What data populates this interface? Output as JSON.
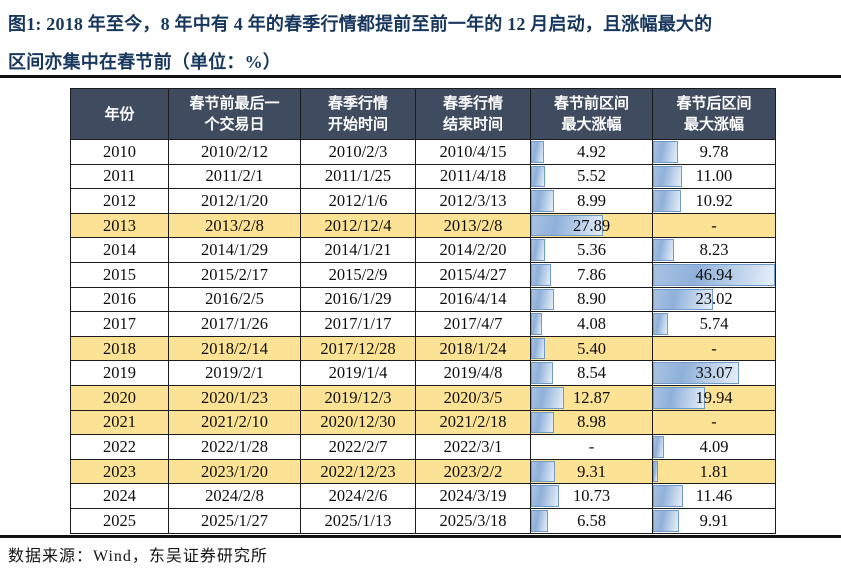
{
  "title": {
    "lines": [
      "图1:  2018 年至今，8 年中有 4 年的春季行情都提前至前一年的 12 月启动，且涨幅最大的",
      "区间亦集中在春节前（单位：%）"
    ]
  },
  "table": {
    "columns": [
      {
        "label": "年份"
      },
      {
        "label": "春节前最后一\n个交易日"
      },
      {
        "label": "春季行情\n开始时间"
      },
      {
        "label": "春季行情\n结束时间"
      },
      {
        "label": "春节前区间\n最大涨幅"
      },
      {
        "label": "春节后区间\n最大涨幅"
      }
    ],
    "bar_max": 46.94,
    "rows": [
      {
        "year": "2010",
        "pre_festival_last_day": "2010/2/12",
        "rally_start": "2010/2/3",
        "rally_end": "2010/4/15",
        "pre_festival_max_gain": "4.92",
        "post_festival_max_gain": "9.78",
        "highlight": false
      },
      {
        "year": "2011",
        "pre_festival_last_day": "2011/2/1",
        "rally_start": "2011/1/25",
        "rally_end": "2011/4/18",
        "pre_festival_max_gain": "5.52",
        "post_festival_max_gain": "11.00",
        "highlight": false
      },
      {
        "year": "2012",
        "pre_festival_last_day": "2012/1/20",
        "rally_start": "2012/1/6",
        "rally_end": "2012/3/13",
        "pre_festival_max_gain": "8.99",
        "post_festival_max_gain": "10.92",
        "highlight": false
      },
      {
        "year": "2013",
        "pre_festival_last_day": "2013/2/8",
        "rally_start": "2012/12/4",
        "rally_end": "2013/2/8",
        "pre_festival_max_gain": "27.89",
        "post_festival_max_gain": "-",
        "highlight": true
      },
      {
        "year": "2014",
        "pre_festival_last_day": "2014/1/29",
        "rally_start": "2014/1/21",
        "rally_end": "2014/2/20",
        "pre_festival_max_gain": "5.36",
        "post_festival_max_gain": "8.23",
        "highlight": false
      },
      {
        "year": "2015",
        "pre_festival_last_day": "2015/2/17",
        "rally_start": "2015/2/9",
        "rally_end": "2015/4/27",
        "pre_festival_max_gain": "7.86",
        "post_festival_max_gain": "46.94",
        "highlight": false
      },
      {
        "year": "2016",
        "pre_festival_last_day": "2016/2/5",
        "rally_start": "2016/1/29",
        "rally_end": "2016/4/14",
        "pre_festival_max_gain": "8.90",
        "post_festival_max_gain": "23.02",
        "highlight": false
      },
      {
        "year": "2017",
        "pre_festival_last_day": "2017/1/26",
        "rally_start": "2017/1/17",
        "rally_end": "2017/4/7",
        "pre_festival_max_gain": "4.08",
        "post_festival_max_gain": "5.74",
        "highlight": false
      },
      {
        "year": "2018",
        "pre_festival_last_day": "2018/2/14",
        "rally_start": "2017/12/28",
        "rally_end": "2018/1/24",
        "pre_festival_max_gain": "5.40",
        "post_festival_max_gain": "-",
        "highlight": true
      },
      {
        "year": "2019",
        "pre_festival_last_day": "2019/2/1",
        "rally_start": "2019/1/4",
        "rally_end": "2019/4/8",
        "pre_festival_max_gain": "8.54",
        "post_festival_max_gain": "33.07",
        "highlight": false
      },
      {
        "year": "2020",
        "pre_festival_last_day": "2020/1/23",
        "rally_start": "2019/12/3",
        "rally_end": "2020/3/5",
        "pre_festival_max_gain": "12.87",
        "post_festival_max_gain": "19.94",
        "highlight": true
      },
      {
        "year": "2021",
        "pre_festival_last_day": "2021/2/10",
        "rally_start": "2020/12/30",
        "rally_end": "2021/2/18",
        "pre_festival_max_gain": "8.98",
        "post_festival_max_gain": "-",
        "highlight": true
      },
      {
        "year": "2022",
        "pre_festival_last_day": "2022/1/28",
        "rally_start": "2022/2/7",
        "rally_end": "2022/3/1",
        "pre_festival_max_gain": "-",
        "post_festival_max_gain": "4.09",
        "highlight": false
      },
      {
        "year": "2023",
        "pre_festival_last_day": "2023/1/20",
        "rally_start": "2022/12/23",
        "rally_end": "2023/2/2",
        "pre_festival_max_gain": "9.31",
        "post_festival_max_gain": "1.81",
        "highlight": true
      },
      {
        "year": "2024",
        "pre_festival_last_day": "2024/2/8",
        "rally_start": "2024/2/6",
        "rally_end": "2024/3/19",
        "pre_festival_max_gain": "10.73",
        "post_festival_max_gain": "11.46",
        "highlight": false
      },
      {
        "year": "2025",
        "pre_festival_last_day": "2025/1/27",
        "rally_start": "2025/1/13",
        "rally_end": "2025/3/18",
        "pre_festival_max_gain": "6.58",
        "post_festival_max_gain": "9.91",
        "highlight": false
      }
    ]
  },
  "footer": {
    "source": "数据来源：Wind，东吴证券研究所"
  },
  "colors": {
    "title_text": "#17375D",
    "header_bg": "#3F4B5E",
    "header_text": "#FFFFFF",
    "highlight_row": "#FBE294",
    "bar_border": "#6F9AC9",
    "bar_fill": "#8FB0D9",
    "rule": "#111111"
  },
  "chart_data": {
    "type": "table",
    "title": "图1: 2018 年至今，8 年中有 4 年的春季行情都提前至前一年的 12 月启动，且涨幅最大的区间亦集中在春节前（单位：%）",
    "columns": [
      "年份",
      "春节前最后一个交易日",
      "春季行情开始时间",
      "春季行情结束时间",
      "春节前区间最大涨幅",
      "春节后区间最大涨幅"
    ],
    "rows": [
      [
        "2010",
        "2010/2/12",
        "2010/2/3",
        "2010/4/15",
        4.92,
        9.78
      ],
      [
        "2011",
        "2011/2/1",
        "2011/1/25",
        "2011/4/18",
        5.52,
        11.0
      ],
      [
        "2012",
        "2012/1/20",
        "2012/1/6",
        "2012/3/13",
        8.99,
        10.92
      ],
      [
        "2013",
        "2013/2/8",
        "2012/12/4",
        "2013/2/8",
        27.89,
        null
      ],
      [
        "2014",
        "2014/1/29",
        "2014/1/21",
        "2014/2/20",
        5.36,
        8.23
      ],
      [
        "2015",
        "2015/2/17",
        "2015/2/9",
        "2015/4/27",
        7.86,
        46.94
      ],
      [
        "2016",
        "2016/2/5",
        "2016/1/29",
        "2016/4/14",
        8.9,
        23.02
      ],
      [
        "2017",
        "2017/1/26",
        "2017/1/17",
        "2017/4/7",
        4.08,
        5.74
      ],
      [
        "2018",
        "2018/2/14",
        "2017/12/28",
        "2018/1/24",
        5.4,
        null
      ],
      [
        "2019",
        "2019/2/1",
        "2019/1/4",
        "2019/4/8",
        8.54,
        33.07
      ],
      [
        "2020",
        "2020/1/23",
        "2019/12/3",
        "2020/3/5",
        12.87,
        19.94
      ],
      [
        "2021",
        "2021/2/10",
        "2020/12/30",
        "2021/2/18",
        8.98,
        null
      ],
      [
        "2022",
        "2022/1/28",
        "2022/2/7",
        "2022/3/1",
        null,
        4.09
      ],
      [
        "2023",
        "2023/1/20",
        "2022/12/23",
        "2023/2/2",
        9.31,
        1.81
      ],
      [
        "2024",
        "2024/2/8",
        "2024/2/6",
        "2024/3/19",
        10.73,
        11.46
      ],
      [
        "2025",
        "2025/1/27",
        "2025/1/13",
        "2025/3/18",
        6.58,
        9.91
      ]
    ],
    "highlighted_years": [
      "2013",
      "2018",
      "2020",
      "2021",
      "2023"
    ],
    "data_bar_columns": [
      "春节前区间最大涨幅",
      "春节后区间最大涨幅"
    ],
    "data_bar_scale_max": 46.94
  }
}
